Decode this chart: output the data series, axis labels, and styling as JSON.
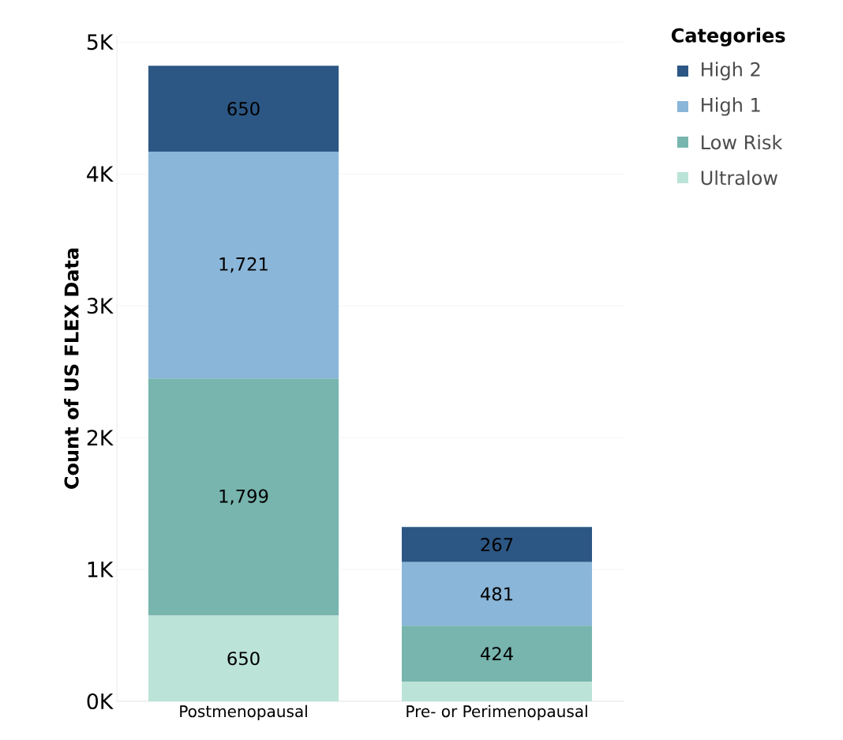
{
  "chart_data": {
    "type": "bar",
    "stacked": true,
    "ylabel": "Count of US FLEX Data",
    "legend_title": "Categories",
    "legend": "top right",
    "categories": [
      "Postmenopausal",
      "Pre- or Perimenopausal"
    ],
    "series": [
      {
        "name": "Ultralow",
        "color": "#bce3d8",
        "values": [
          650,
          150
        ],
        "value_labels": [
          "650",
          null
        ]
      },
      {
        "name": "Low Risk",
        "color": "#77b5ae",
        "values": [
          1799,
          424
        ],
        "value_labels": [
          "1,799",
          "424"
        ]
      },
      {
        "name": "High 1",
        "color": "#8ab6d9",
        "values": [
          1721,
          481
        ],
        "value_labels": [
          "1,721",
          "481"
        ]
      },
      {
        "name": "High 2",
        "color": "#2c5784",
        "values": [
          650,
          267
        ],
        "value_labels": [
          "650",
          "267"
        ]
      }
    ],
    "ylim": [
      0,
      5050
    ],
    "yticks": [
      {
        "value": 0,
        "label": "0K"
      },
      {
        "value": 1000,
        "label": "1K"
      },
      {
        "value": 2000,
        "label": "2K"
      },
      {
        "value": 3000,
        "label": "3K"
      },
      {
        "value": 4000,
        "label": "4K"
      },
      {
        "value": 5000,
        "label": "5K"
      }
    ],
    "grid": "y"
  }
}
